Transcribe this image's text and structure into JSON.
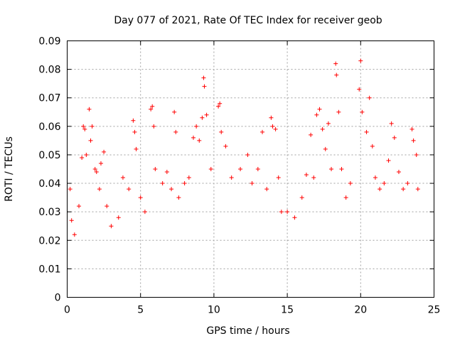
{
  "chart_data": {
    "type": "scatter",
    "title": "Day 077 of 2021, Rate Of TEC Index for receiver geob",
    "xlabel": "GPS time / hours",
    "ylabel": "ROTI / TECUs",
    "xlim": [
      0,
      25
    ],
    "ylim": [
      0,
      0.09
    ],
    "xticks": [
      0,
      5,
      10,
      15,
      20,
      25
    ],
    "xtick_labels": [
      "0",
      "5",
      "10",
      "15",
      "20",
      "25"
    ],
    "yticks": [
      0,
      0.01,
      0.02,
      0.03,
      0.04,
      0.05,
      0.06,
      0.07,
      0.08,
      0.09
    ],
    "ytick_labels": [
      "0",
      "0.01",
      "0.02",
      "0.03",
      "0.04",
      "0.05",
      "0.06",
      "0.07",
      "0.08",
      "0.09"
    ],
    "grid": true,
    "marker": "+",
    "color": "#ff0000",
    "series": [
      {
        "values": [
          [
            0.2,
            0.038
          ],
          [
            0.3,
            0.027
          ],
          [
            0.5,
            0.022
          ],
          [
            0.8,
            0.032
          ],
          [
            1.0,
            0.049
          ],
          [
            1.1,
            0.06
          ],
          [
            1.2,
            0.059
          ],
          [
            1.3,
            0.05
          ],
          [
            1.5,
            0.066
          ],
          [
            1.6,
            0.055
          ],
          [
            1.7,
            0.06
          ],
          [
            1.9,
            0.045
          ],
          [
            2.0,
            0.044
          ],
          [
            2.2,
            0.038
          ],
          [
            2.3,
            0.047
          ],
          [
            2.5,
            0.051
          ],
          [
            2.7,
            0.032
          ],
          [
            3.0,
            0.025
          ],
          [
            3.5,
            0.028
          ],
          [
            3.8,
            0.042
          ],
          [
            4.2,
            0.038
          ],
          [
            4.5,
            0.062
          ],
          [
            4.6,
            0.058
          ],
          [
            4.7,
            0.052
          ],
          [
            5.0,
            0.035
          ],
          [
            5.3,
            0.03
          ],
          [
            5.7,
            0.066
          ],
          [
            5.8,
            0.067
          ],
          [
            5.9,
            0.06
          ],
          [
            6.0,
            0.045
          ],
          [
            6.5,
            0.04
          ],
          [
            6.8,
            0.044
          ],
          [
            7.1,
            0.038
          ],
          [
            7.3,
            0.065
          ],
          [
            7.4,
            0.058
          ],
          [
            7.6,
            0.035
          ],
          [
            8.0,
            0.04
          ],
          [
            8.3,
            0.042
          ],
          [
            8.6,
            0.056
          ],
          [
            8.8,
            0.06
          ],
          [
            9.0,
            0.055
          ],
          [
            9.2,
            0.063
          ],
          [
            9.3,
            0.077
          ],
          [
            9.35,
            0.074
          ],
          [
            9.5,
            0.064
          ],
          [
            9.8,
            0.045
          ],
          [
            10.3,
            0.067
          ],
          [
            10.4,
            0.068
          ],
          [
            10.5,
            0.058
          ],
          [
            10.8,
            0.053
          ],
          [
            11.2,
            0.042
          ],
          [
            11.8,
            0.045
          ],
          [
            12.3,
            0.05
          ],
          [
            12.6,
            0.04
          ],
          [
            13.0,
            0.045
          ],
          [
            13.3,
            0.058
          ],
          [
            13.6,
            0.038
          ],
          [
            13.9,
            0.063
          ],
          [
            14.0,
            0.06
          ],
          [
            14.2,
            0.059
          ],
          [
            14.4,
            0.042
          ],
          [
            14.6,
            0.03
          ],
          [
            15.0,
            0.03
          ],
          [
            15.5,
            0.028
          ],
          [
            16.0,
            0.035
          ],
          [
            16.3,
            0.043
          ],
          [
            16.6,
            0.057
          ],
          [
            16.8,
            0.042
          ],
          [
            17.0,
            0.064
          ],
          [
            17.2,
            0.066
          ],
          [
            17.4,
            0.059
          ],
          [
            17.6,
            0.052
          ],
          [
            17.8,
            0.061
          ],
          [
            18.0,
            0.045
          ],
          [
            18.3,
            0.082
          ],
          [
            18.35,
            0.078
          ],
          [
            18.5,
            0.065
          ],
          [
            18.7,
            0.045
          ],
          [
            19.0,
            0.035
          ],
          [
            19.3,
            0.04
          ],
          [
            19.9,
            0.073
          ],
          [
            20.0,
            0.083
          ],
          [
            20.1,
            0.065
          ],
          [
            20.4,
            0.058
          ],
          [
            20.6,
            0.07
          ],
          [
            20.8,
            0.053
          ],
          [
            21.0,
            0.042
          ],
          [
            21.3,
            0.038
          ],
          [
            21.6,
            0.04
          ],
          [
            21.9,
            0.048
          ],
          [
            22.1,
            0.061
          ],
          [
            22.3,
            0.056
          ],
          [
            22.6,
            0.044
          ],
          [
            22.9,
            0.038
          ],
          [
            23.2,
            0.04
          ],
          [
            23.5,
            0.059
          ],
          [
            23.6,
            0.055
          ],
          [
            23.8,
            0.05
          ],
          [
            23.9,
            0.038
          ]
        ]
      }
    ]
  }
}
